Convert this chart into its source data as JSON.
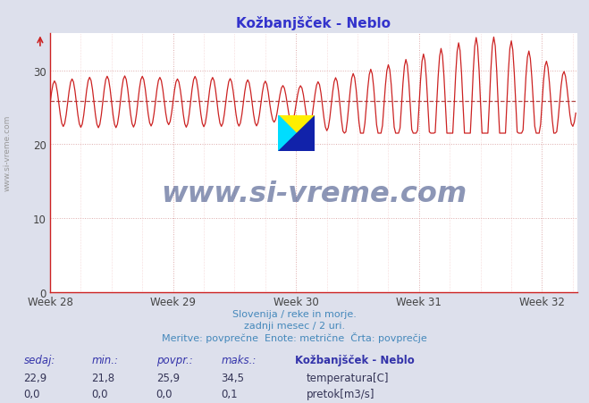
{
  "title": "Kožbanjšček - Neblo",
  "subtitle_lines": [
    "Slovenija / reke in morje.",
    "zadnji mesec / 2 uri.",
    "Meritve: povprečne  Enote: metrične  Črta: povprečje"
  ],
  "xlabel_weeks": [
    "Week 28",
    "Week 29",
    "Week 30",
    "Week 31",
    "Week 32"
  ],
  "week_positions": [
    0,
    84,
    168,
    252,
    336
  ],
  "ylim": [
    0,
    35
  ],
  "xlim": [
    0,
    360
  ],
  "avg_line_value": 25.9,
  "avg_line_color": "#aa3333",
  "temp_color": "#cc2222",
  "flow_color": "#00aa00",
  "bg_color": "#dde0ec",
  "plot_bg_color": "#ffffff",
  "grid_color": "#ddaaaa",
  "title_color": "#3333cc",
  "axis_color": "#cc2222",
  "text_color": "#4488bb",
  "label_color": "#3333aa",
  "stat_color": "#333355",
  "watermark_text": "www.si-vreme.com",
  "watermark_color": "#1a2e6e",
  "side_watermark_color": "#999999",
  "sedaj": "22,9",
  "min_val": "21,8",
  "povpr": "25,9",
  "maks": "34,5",
  "flow_sedaj": "0,0",
  "flow_min": "0,0",
  "flow_povpr": "0,0",
  "flow_maks": "0,1",
  "legend_title": "Kožbanjšček - Neblo",
  "label_temp": "temperatura[C]",
  "label_flow": "pretok[m3/s]",
  "num_points": 360,
  "logo_yellow": "#ffee00",
  "logo_cyan": "#00ddff",
  "logo_blue": "#1122aa"
}
